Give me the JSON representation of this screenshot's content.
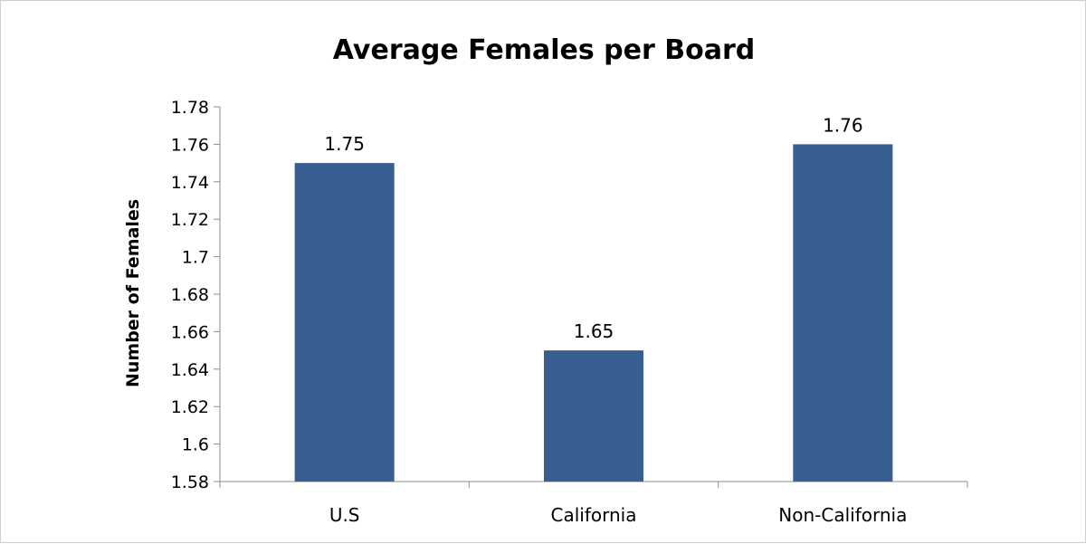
{
  "chart_data": {
    "type": "bar",
    "title": "Average Females per Board",
    "ylabel": "Number of Females",
    "xlabel": "",
    "categories": [
      "U.S",
      "California",
      "Non-California"
    ],
    "values": [
      1.75,
      1.65,
      1.76
    ],
    "data_labels": [
      "1.75",
      "1.65",
      "1.76"
    ],
    "ylim": [
      1.58,
      1.78
    ],
    "yticks": [
      "1.58",
      "1.6",
      "1.62",
      "1.64",
      "1.66",
      "1.68",
      "1.7",
      "1.72",
      "1.74",
      "1.76",
      "1.78"
    ],
    "ytick_values": [
      1.58,
      1.6,
      1.62,
      1.64,
      1.66,
      1.68,
      1.7,
      1.72,
      1.74,
      1.76,
      1.78
    ],
    "grid": false,
    "legend": "none",
    "bar_color": "#375F91"
  }
}
